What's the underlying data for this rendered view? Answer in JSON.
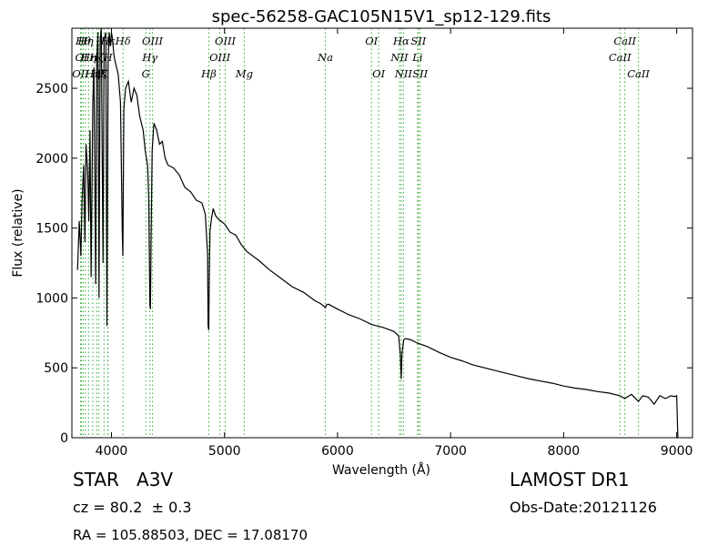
{
  "chart_data": {
    "type": "line",
    "title": "spec-56258-GAC105N15V1_sp12-129.fits",
    "xlabel": "Wavelength (Å)",
    "ylabel": "Flux (relative)",
    "xlim": [
      3650,
      9140
    ],
    "ylim": [
      0,
      2930
    ],
    "xticks": [
      4000,
      5000,
      6000,
      7000,
      8000,
      9000
    ],
    "yticks": [
      0,
      500,
      1000,
      1500,
      2000,
      2500
    ],
    "grid": false,
    "line_color": "#000000",
    "marker_color": "#33aa33",
    "series": [
      {
        "x": [
          3700,
          3715,
          3730,
          3740,
          3755,
          3765,
          3775,
          3790,
          3800,
          3810,
          3820,
          3835,
          3845,
          3860,
          3870,
          3880,
          3890,
          3900,
          3910,
          3925,
          3935,
          3950,
          3960,
          3970,
          3980,
          3990,
          4000,
          4010,
          4020,
          4030,
          4045,
          4060,
          4080,
          4095,
          4101,
          4110,
          4125,
          4150,
          4175,
          4200,
          4225,
          4250,
          4280,
          4300,
          4320,
          4330,
          4340,
          4345,
          4350,
          4360,
          4375,
          4400,
          4425,
          4450,
          4475,
          4500,
          4550,
          4600,
          4650,
          4700,
          4750,
          4800,
          4830,
          4850,
          4855,
          4861,
          4866,
          4872,
          4885,
          4900,
          4920,
          4950,
          5000,
          5050,
          5100,
          5150,
          5200,
          5300,
          5400,
          5500,
          5600,
          5700,
          5800,
          5850,
          5880,
          5893,
          5900,
          5920,
          6000,
          6100,
          6200,
          6300,
          6400,
          6500,
          6540,
          6555,
          6563,
          6570,
          6585,
          6600,
          6650,
          6700,
          6800,
          6900,
          7000,
          7100,
          7200,
          7300,
          7400,
          7500,
          7600,
          7700,
          7800,
          7900,
          8000,
          8100,
          8200,
          8300,
          8400,
          8500,
          8540,
          8600,
          8662,
          8700,
          8750,
          8800,
          8850,
          8900,
          8950,
          8980,
          9000,
          9010
        ],
        "y": [
          1200,
          1550,
          1300,
          1700,
          1950,
          1400,
          2100,
          1900,
          1550,
          2200,
          1150,
          2400,
          2650,
          1100,
          2700,
          2900,
          1000,
          2850,
          2930,
          1250,
          2850,
          2900,
          800,
          2700,
          2900,
          2800,
          2900,
          2850,
          2750,
          2700,
          2650,
          2600,
          2400,
          1500,
          1300,
          2350,
          2500,
          2550,
          2400,
          2500,
          2450,
          2300,
          2200,
          2050,
          1950,
          1700,
          950,
          920,
          1400,
          2050,
          2250,
          2200,
          2100,
          2120,
          2000,
          1950,
          1930,
          1880,
          1790,
          1760,
          1700,
          1680,
          1600,
          1320,
          800,
          770,
          1200,
          1480,
          1570,
          1640,
          1590,
          1560,
          1530,
          1470,
          1450,
          1380,
          1330,
          1270,
          1200,
          1140,
          1080,
          1040,
          980,
          960,
          940,
          930,
          950,
          955,
          920,
          880,
          850,
          810,
          790,
          760,
          730,
          600,
          420,
          600,
          700,
          710,
          700,
          680,
          650,
          610,
          575,
          550,
          520,
          500,
          480,
          460,
          440,
          420,
          405,
          390,
          370,
          355,
          345,
          330,
          320,
          300,
          280,
          310,
          260,
          300,
          290,
          240,
          300,
          280,
          300,
          295,
          300,
          0
        ]
      }
    ],
    "lines": [
      {
        "x": 3727,
        "label": "OII",
        "row": 2
      },
      {
        "x": 3734,
        "label": "OI",
        "row": 1
      },
      {
        "x": 3750,
        "label": "Hθ",
        "row": 0
      },
      {
        "x": 3771,
        "label": "Hη",
        "row": 0
      },
      {
        "x": 3798,
        "label": "Hη",
        "row": 1
      },
      {
        "x": 3835,
        "label": "Hη",
        "row": 2
      },
      {
        "x": 3869,
        "label": "Hζ",
        "row": 1
      },
      {
        "x": 3889,
        "label": "Hζ",
        "row": 2
      },
      {
        "x": 3934,
        "label": "K",
        "row": 2
      },
      {
        "x": 3969,
        "label": "H",
        "row": 1
      },
      {
        "x": 3970,
        "label": "Hε",
        "row": 0
      },
      {
        "x": 4102,
        "label": "Hδ",
        "row": 0
      },
      {
        "x": 4304,
        "label": "G",
        "row": 2
      },
      {
        "x": 4340,
        "label": "Hγ",
        "row": 1
      },
      {
        "x": 4363,
        "label": "OIII",
        "row": 0
      },
      {
        "x": 4861,
        "label": "Hβ",
        "row": 2
      },
      {
        "x": 4959,
        "label": "OIII",
        "row": 1
      },
      {
        "x": 5007,
        "label": "OIII",
        "row": 0
      },
      {
        "x": 5175,
        "label": "Mg",
        "row": 2
      },
      {
        "x": 5892,
        "label": "Na",
        "row": 1
      },
      {
        "x": 6300,
        "label": "OI",
        "row": 0
      },
      {
        "x": 6364,
        "label": "OI",
        "row": 2
      },
      {
        "x": 6548,
        "label": "NII",
        "row": 1
      },
      {
        "x": 6563,
        "label": "Hα",
        "row": 0
      },
      {
        "x": 6583,
        "label": "NII",
        "row": 2
      },
      {
        "x": 6708,
        "label": "Li",
        "row": 1
      },
      {
        "x": 6716,
        "label": "SII",
        "row": 0
      },
      {
        "x": 6731,
        "label": "SII",
        "row": 2
      },
      {
        "x": 8498,
        "label": "CaII",
        "row": 1
      },
      {
        "x": 8542,
        "label": "CaII",
        "row": 0
      },
      {
        "x": 8662,
        "label": "CaII",
        "row": 2
      }
    ]
  },
  "info": {
    "object_type": "STAR",
    "subclass": "A3V",
    "survey": "LAMOST DR1",
    "redshift": "cz = 80.2  ± 0.3",
    "obs_date": "Obs-Date:20121126",
    "coords": "RA = 105.88503, DEC = 17.08170"
  }
}
